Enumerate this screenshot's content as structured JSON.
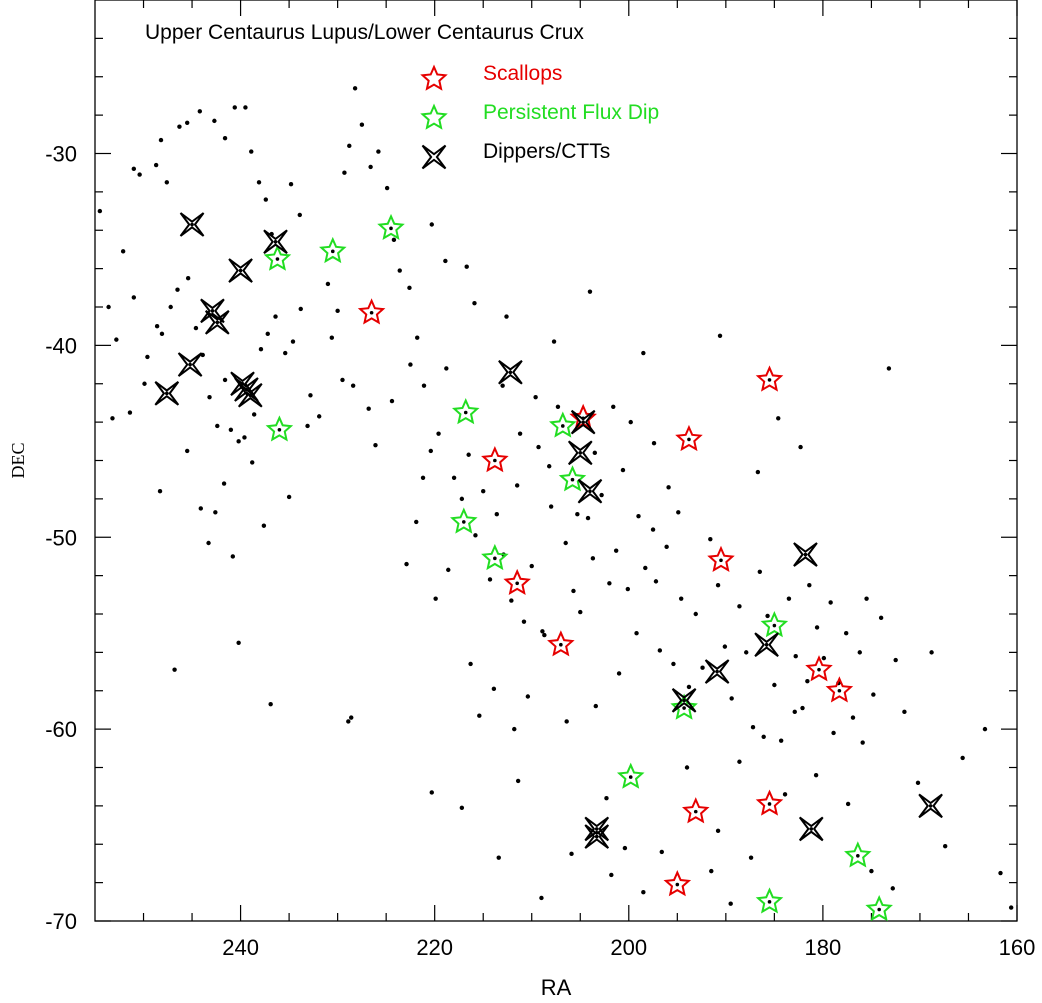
{
  "chart_data": {
    "type": "scatter",
    "title": "Upper Centaurus Lupus/Lower Centaurus Crux",
    "xlabel": "RA",
    "ylabel": "DEC",
    "xlim": [
      255,
      160
    ],
    "ylim": [
      -70,
      -22
    ],
    "x_reversed": true,
    "x_ticks": [
      240,
      220,
      200,
      180,
      160
    ],
    "y_ticks": [
      -30,
      -40,
      -50,
      -60,
      -70
    ],
    "grid": false,
    "legend_position": "top",
    "series": [
      {
        "name": "Scallops",
        "marker": "star",
        "color": "#e60000",
        "points": [
          [
            226.5,
            -38.3
          ],
          [
            213.8,
            -46.0
          ],
          [
            211.5,
            -52.4
          ],
          [
            207.0,
            -55.6
          ],
          [
            204.7,
            -43.8
          ],
          [
            193.8,
            -44.9
          ],
          [
            190.5,
            -51.2
          ],
          [
            185.5,
            -41.8
          ],
          [
            180.4,
            -56.9
          ],
          [
            178.3,
            -58.0
          ],
          [
            193.1,
            -64.3
          ],
          [
            185.5,
            -63.9
          ],
          [
            195.0,
            -68.1
          ]
        ]
      },
      {
        "name": "Persistent Flux Dip",
        "marker": "star",
        "color": "#22dd22",
        "points": [
          [
            236.2,
            -35.5
          ],
          [
            230.5,
            -35.1
          ],
          [
            224.5,
            -33.9
          ],
          [
            236.0,
            -44.4
          ],
          [
            216.8,
            -43.5
          ],
          [
            217.0,
            -49.2
          ],
          [
            213.8,
            -51.1
          ],
          [
            206.8,
            -44.2
          ],
          [
            205.8,
            -47.0
          ],
          [
            185.0,
            -54.6
          ],
          [
            194.3,
            -58.9
          ],
          [
            199.8,
            -62.5
          ],
          [
            176.4,
            -66.6
          ],
          [
            185.5,
            -69.0
          ],
          [
            174.2,
            -69.4
          ]
        ]
      },
      {
        "name": "Dippers/CTTs",
        "marker": "cross-star",
        "color": "#000000",
        "points": [
          [
            245.0,
            -33.7
          ],
          [
            236.4,
            -34.6
          ],
          [
            240.0,
            -36.1
          ],
          [
            242.9,
            -38.2
          ],
          [
            242.4,
            -38.8
          ],
          [
            245.2,
            -41.0
          ],
          [
            247.6,
            -42.5
          ],
          [
            239.8,
            -42.0
          ],
          [
            239.4,
            -42.3
          ],
          [
            239.0,
            -42.6
          ],
          [
            212.2,
            -41.4
          ],
          [
            204.7,
            -44.0
          ],
          [
            205.0,
            -45.6
          ],
          [
            204.0,
            -47.6
          ],
          [
            181.8,
            -50.9
          ],
          [
            185.8,
            -55.6
          ],
          [
            190.9,
            -57.0
          ],
          [
            194.3,
            -58.5
          ],
          [
            203.3,
            -65.2
          ],
          [
            203.3,
            -65.6
          ],
          [
            181.2,
            -65.2
          ],
          [
            168.9,
            -64.0
          ]
        ]
      }
    ],
    "background_points": [
      [
        254.5,
        -33.0
      ],
      [
        253.6,
        -38.0
      ],
      [
        252.8,
        -39.7
      ],
      [
        251.0,
        -30.8
      ],
      [
        250.4,
        -31.1
      ],
      [
        248.7,
        -30.6
      ],
      [
        248.2,
        -29.3
      ],
      [
        247.6,
        -31.5
      ],
      [
        246.3,
        -28.6
      ],
      [
        245.5,
        -28.4
      ],
      [
        244.2,
        -27.8
      ],
      [
        242.7,
        -28.3
      ],
      [
        241.6,
        -29.2
      ],
      [
        240.6,
        -27.6
      ],
      [
        239.5,
        -27.6
      ],
      [
        238.9,
        -29.9
      ],
      [
        238.1,
        -31.5
      ],
      [
        237.4,
        -32.4
      ],
      [
        236.8,
        -34.2
      ],
      [
        234.8,
        -31.6
      ],
      [
        233.9,
        -33.2
      ],
      [
        252.1,
        -35.1
      ],
      [
        251.0,
        -37.5
      ],
      [
        249.6,
        -40.6
      ],
      [
        248.6,
        -39.0
      ],
      [
        248.1,
        -39.4
      ],
      [
        247.2,
        -38.0
      ],
      [
        246.5,
        -37.1
      ],
      [
        245.4,
        -36.5
      ],
      [
        244.6,
        -39.1
      ],
      [
        243.9,
        -40.5
      ],
      [
        243.2,
        -42.7
      ],
      [
        242.4,
        -44.2
      ],
      [
        241.6,
        -41.8
      ],
      [
        241.0,
        -44.4
      ],
      [
        240.2,
        -45.0
      ],
      [
        239.6,
        -44.8
      ],
      [
        238.6,
        -43.6
      ],
      [
        237.9,
        -40.2
      ],
      [
        237.2,
        -39.4
      ],
      [
        236.4,
        -38.5
      ],
      [
        235.4,
        -40.4
      ],
      [
        234.6,
        -39.8
      ],
      [
        233.8,
        -38.1
      ],
      [
        232.8,
        -42.6
      ],
      [
        231.9,
        -43.7
      ],
      [
        253.2,
        -43.8
      ],
      [
        251.4,
        -43.5
      ],
      [
        249.9,
        -42.0
      ],
      [
        248.3,
        -47.6
      ],
      [
        246.8,
        -56.9
      ],
      [
        245.5,
        -45.5
      ],
      [
        244.1,
        -48.5
      ],
      [
        243.3,
        -50.3
      ],
      [
        242.6,
        -48.7
      ],
      [
        241.7,
        -47.2
      ],
      [
        240.8,
        -51.0
      ],
      [
        240.2,
        -55.5
      ],
      [
        238.8,
        -46.1
      ],
      [
        237.6,
        -49.4
      ],
      [
        236.9,
        -58.7
      ],
      [
        235.0,
        -47.9
      ],
      [
        231.0,
        -36.8
      ],
      [
        230.0,
        -38.2
      ],
      [
        229.3,
        -31.0
      ],
      [
        228.8,
        -29.6
      ],
      [
        228.2,
        -26.6
      ],
      [
        227.5,
        -28.5
      ],
      [
        226.6,
        -30.7
      ],
      [
        225.8,
        -29.9
      ],
      [
        224.9,
        -31.8
      ],
      [
        224.2,
        -34.5
      ],
      [
        223.6,
        -36.1
      ],
      [
        222.6,
        -37.0
      ],
      [
        221.8,
        -39.6
      ],
      [
        221.1,
        -42.1
      ],
      [
        220.4,
        -45.5
      ],
      [
        219.6,
        -44.6
      ],
      [
        218.8,
        -41.2
      ],
      [
        218.0,
        -46.9
      ],
      [
        217.2,
        -48.0
      ],
      [
        216.5,
        -45.7
      ],
      [
        215.8,
        -49.9
      ],
      [
        215.0,
        -47.6
      ],
      [
        214.3,
        -52.2
      ],
      [
        213.6,
        -48.8
      ],
      [
        212.9,
        -50.9
      ],
      [
        212.1,
        -53.3
      ],
      [
        211.5,
        -47.3
      ],
      [
        210.8,
        -54.4
      ],
      [
        210.0,
        -51.5
      ],
      [
        209.3,
        -45.3
      ],
      [
        208.7,
        -55.1
      ],
      [
        208.0,
        -48.4
      ],
      [
        207.3,
        -43.2
      ],
      [
        206.5,
        -50.3
      ],
      [
        205.7,
        -52.8
      ],
      [
        205.0,
        -53.9
      ],
      [
        204.2,
        -49.0
      ],
      [
        203.5,
        -45.6
      ],
      [
        202.8,
        -47.8
      ],
      [
        202.0,
        -52.4
      ],
      [
        201.3,
        -50.7
      ],
      [
        200.6,
        -46.5
      ],
      [
        199.8,
        -44.0
      ],
      [
        199.0,
        -48.9
      ],
      [
        198.3,
        -51.6
      ],
      [
        197.5,
        -49.6
      ],
      [
        196.8,
        -55.9
      ],
      [
        196.1,
        -50.5
      ],
      [
        195.4,
        -56.6
      ],
      [
        194.6,
        -53.2
      ],
      [
        193.8,
        -57.8
      ],
      [
        193.1,
        -54.0
      ],
      [
        192.4,
        -56.8
      ],
      [
        191.6,
        -50.1
      ],
      [
        190.8,
        -52.5
      ],
      [
        190.1,
        -55.7
      ],
      [
        189.4,
        -58.4
      ],
      [
        188.6,
        -53.6
      ],
      [
        187.9,
        -56.0
      ],
      [
        187.2,
        -59.9
      ],
      [
        186.5,
        -51.8
      ],
      [
        185.7,
        -54.1
      ],
      [
        185.0,
        -57.7
      ],
      [
        184.3,
        -60.6
      ],
      [
        183.5,
        -53.2
      ],
      [
        182.8,
        -56.2
      ],
      [
        182.1,
        -58.9
      ],
      [
        181.4,
        -52.5
      ],
      [
        180.6,
        -54.7
      ],
      [
        179.9,
        -56.3
      ],
      [
        179.2,
        -53.4
      ],
      [
        178.4,
        -57.6
      ],
      [
        177.6,
        -55.0
      ],
      [
        176.9,
        -59.4
      ],
      [
        176.2,
        -56.0
      ],
      [
        175.5,
        -53.2
      ],
      [
        174.8,
        -58.2
      ],
      [
        174.0,
        -54.2
      ],
      [
        173.2,
        -41.2
      ],
      [
        172.5,
        -56.4
      ],
      [
        171.6,
        -59.1
      ],
      [
        170.2,
        -62.8
      ],
      [
        168.8,
        -56.0
      ],
      [
        167.4,
        -66.1
      ],
      [
        165.6,
        -61.5
      ],
      [
        163.3,
        -60.0
      ],
      [
        161.7,
        -67.5
      ],
      [
        160.6,
        -69.3
      ],
      [
        182.3,
        -45.3
      ],
      [
        184.6,
        -43.8
      ],
      [
        186.7,
        -46.6
      ],
      [
        190.6,
        -39.5
      ],
      [
        198.5,
        -40.4
      ],
      [
        204.0,
        -37.2
      ],
      [
        207.7,
        -39.8
      ],
      [
        212.6,
        -38.5
      ],
      [
        216.7,
        -35.9
      ],
      [
        220.3,
        -33.7
      ],
      [
        222.9,
        -51.4
      ],
      [
        221.9,
        -49.2
      ],
      [
        218.6,
        -51.7
      ],
      [
        219.9,
        -53.2
      ],
      [
        216.3,
        -56.6
      ],
      [
        215.4,
        -59.3
      ],
      [
        213.9,
        -57.9
      ],
      [
        211.8,
        -60.0
      ],
      [
        210.4,
        -58.3
      ],
      [
        208.9,
        -54.9
      ],
      [
        206.4,
        -59.6
      ],
      [
        203.4,
        -58.8
      ],
      [
        202.3,
        -63.6
      ],
      [
        200.4,
        -66.2
      ],
      [
        198.5,
        -68.5
      ],
      [
        196.6,
        -66.4
      ],
      [
        194.0,
        -62.0
      ],
      [
        190.8,
        -65.3
      ],
      [
        189.5,
        -69.1
      ],
      [
        187.4,
        -66.7
      ],
      [
        183.9,
        -63.4
      ],
      [
        180.7,
        -62.4
      ],
      [
        177.4,
        -63.9
      ],
      [
        175.0,
        -67.4
      ],
      [
        172.8,
        -68.3
      ],
      [
        220.3,
        -63.3
      ],
      [
        217.2,
        -64.1
      ],
      [
        213.4,
        -66.7
      ],
      [
        211.4,
        -62.7
      ],
      [
        209.0,
        -68.8
      ],
      [
        205.9,
        -66.5
      ],
      [
        201.8,
        -67.6
      ],
      [
        191.5,
        -67.4
      ],
      [
        188.6,
        -61.7
      ],
      [
        186.1,
        -60.4
      ],
      [
        182.9,
        -59.1
      ],
      [
        181.6,
        -57.5
      ],
      [
        178.9,
        -60.2
      ],
      [
        175.9,
        -60.7
      ],
      [
        226.8,
        -43.3
      ],
      [
        228.4,
        -42.1
      ],
      [
        229.5,
        -41.8
      ],
      [
        230.6,
        -39.6
      ],
      [
        233.1,
        -44.2
      ],
      [
        226.1,
        -45.2
      ],
      [
        224.4,
        -42.9
      ],
      [
        222.5,
        -41.0
      ],
      [
        221.2,
        -46.9
      ],
      [
        228.6,
        -59.4
      ],
      [
        228.9,
        -59.6
      ],
      [
        218.9,
        -35.6
      ],
      [
        215.9,
        -37.8
      ],
      [
        213.0,
        -42.1
      ],
      [
        211.2,
        -44.6
      ],
      [
        209.6,
        -42.7
      ],
      [
        208.2,
        -46.3
      ],
      [
        201.6,
        -43.2
      ],
      [
        197.4,
        -45.1
      ],
      [
        195.9,
        -47.4
      ],
      [
        194.9,
        -48.7
      ],
      [
        197.2,
        -52.3
      ],
      [
        199.2,
        -55.0
      ],
      [
        201.0,
        -57.1
      ],
      [
        200.1,
        -52.7
      ],
      [
        203.7,
        -51.1
      ],
      [
        205.3,
        -48.8
      ]
    ]
  }
}
